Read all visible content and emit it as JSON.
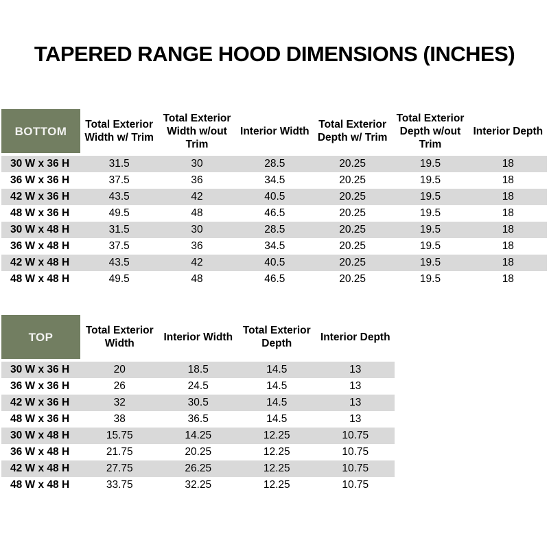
{
  "page": {
    "title": "TAPERED RANGE HOOD DIMENSIONS (INCHES)"
  },
  "colors": {
    "header_green": "#727e61",
    "stripe_gray": "#d9d9d9",
    "corner_text": "#f2f2f0",
    "body_text": "#000000"
  },
  "bottom_table": {
    "corner_label": "BOTTOM",
    "columns": [
      "Total Exterior Width w/ Trim",
      "Total Exterior Width w/out Trim",
      "Interior Width",
      "Total Exterior Depth w/ Trim",
      "Total Exterior Depth w/out Trim",
      "Interior Depth"
    ],
    "rows": [
      {
        "label": "30 W x 36 H",
        "values": [
          "31.5",
          "30",
          "28.5",
          "20.25",
          "19.5",
          "18"
        ]
      },
      {
        "label": "36 W x 36 H",
        "values": [
          "37.5",
          "36",
          "34.5",
          "20.25",
          "19.5",
          "18"
        ]
      },
      {
        "label": "42 W x 36 H",
        "values": [
          "43.5",
          "42",
          "40.5",
          "20.25",
          "19.5",
          "18"
        ]
      },
      {
        "label": "48 W x 36 H",
        "values": [
          "49.5",
          "48",
          "46.5",
          "20.25",
          "19.5",
          "18"
        ]
      },
      {
        "label": "30 W x 48 H",
        "values": [
          "31.5",
          "30",
          "28.5",
          "20.25",
          "19.5",
          "18"
        ]
      },
      {
        "label": "36 W x 48 H",
        "values": [
          "37.5",
          "36",
          "34.5",
          "20.25",
          "19.5",
          "18"
        ]
      },
      {
        "label": "42 W x 48 H",
        "values": [
          "43.5",
          "42",
          "40.5",
          "20.25",
          "19.5",
          "18"
        ]
      },
      {
        "label": "48 W x 48 H",
        "values": [
          "49.5",
          "48",
          "46.5",
          "20.25",
          "19.5",
          "18"
        ]
      }
    ]
  },
  "top_table": {
    "corner_label": "TOP",
    "columns": [
      "Total Exterior Width",
      "Interior Width",
      "Total Exterior Depth",
      "Interior Depth"
    ],
    "rows": [
      {
        "label": "30 W x 36 H",
        "values": [
          "20",
          "18.5",
          "14.5",
          "13"
        ]
      },
      {
        "label": "36 W x 36 H",
        "values": [
          "26",
          "24.5",
          "14.5",
          "13"
        ]
      },
      {
        "label": "42 W x 36 H",
        "values": [
          "32",
          "30.5",
          "14.5",
          "13"
        ]
      },
      {
        "label": "48 W x 36 H",
        "values": [
          "38",
          "36.5",
          "14.5",
          "13"
        ]
      },
      {
        "label": "30 W x 48 H",
        "values": [
          "15.75",
          "14.25",
          "12.25",
          "10.75"
        ]
      },
      {
        "label": "36 W x 48 H",
        "values": [
          "21.75",
          "20.25",
          "12.25",
          "10.75"
        ]
      },
      {
        "label": "42 W x 48 H",
        "values": [
          "27.75",
          "26.25",
          "12.25",
          "10.75"
        ]
      },
      {
        "label": "48 W x 48 H",
        "values": [
          "33.75",
          "32.25",
          "12.25",
          "10.75"
        ]
      }
    ]
  }
}
